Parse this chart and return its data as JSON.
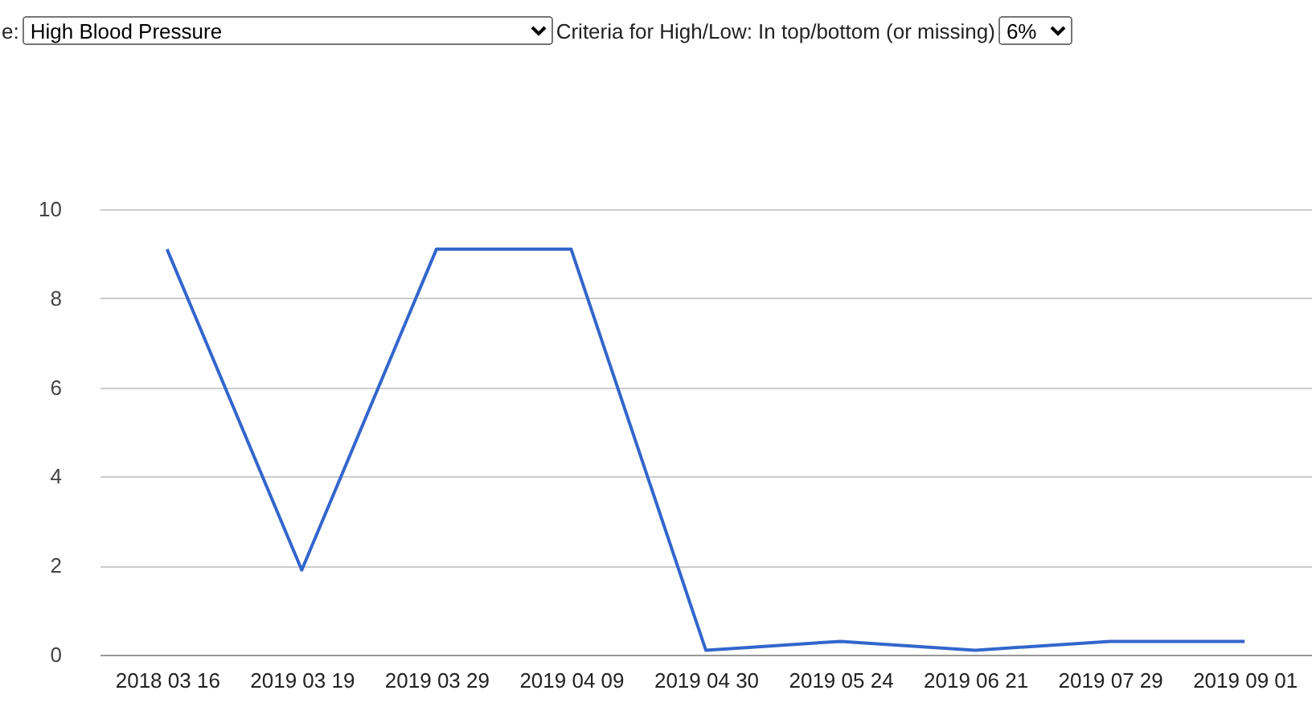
{
  "chart_data": {
    "type": "line",
    "annotations": [
      "e:",
      "High Blood Pressure",
      "Criteria for High/Low: In top/bottom (or missing)",
      "6%"
    ],
    "categories": [
      "2018 03 16",
      "2019 03 19",
      "2019 03 29",
      "2019 04 09",
      "2019 04 30",
      "2019 05 24",
      "2019 06 21",
      "2019 07 29",
      "2019 09 01"
    ],
    "series": [
      {
        "color": "#3366cc",
        "values": [
          9.1,
          1.9,
          9.1,
          9.1,
          0.1,
          0.3,
          0.1,
          0.3,
          0.3
        ]
      }
    ],
    "ylim": [
      0,
      10
    ],
    "yticks": [
      0,
      2,
      4,
      6,
      8,
      10
    ],
    "grid": "y",
    "marker": "none",
    "line_style": "solid"
  }
}
